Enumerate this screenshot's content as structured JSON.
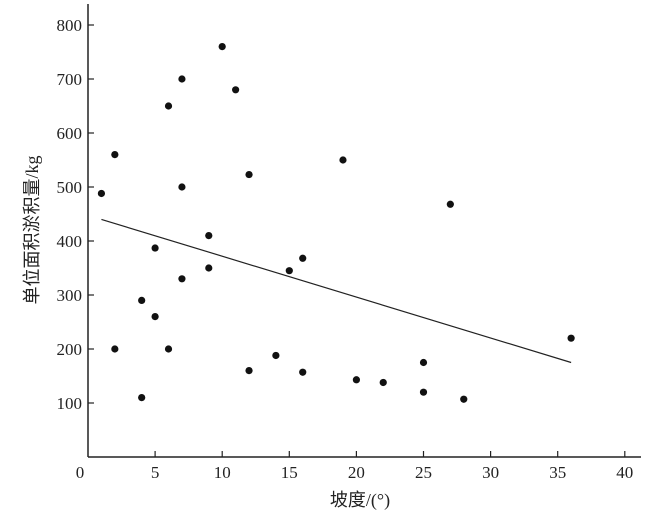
{
  "chart_data": {
    "type": "scatter",
    "title": "",
    "xlabel": "坡度/(°)",
    "ylabel": "单位面积淤积量/kg",
    "xlim": [
      0,
      41
    ],
    "ylim": [
      0,
      840
    ],
    "xticks": [
      0,
      5,
      10,
      15,
      20,
      25,
      30,
      35,
      40
    ],
    "yticks": [
      100,
      200,
      300,
      400,
      500,
      600,
      700,
      800
    ],
    "grid": false,
    "point_color": "#111111",
    "points": [
      [
        1,
        488
      ],
      [
        2,
        560
      ],
      [
        2,
        200
      ],
      [
        4,
        290
      ],
      [
        4,
        110
      ],
      [
        5,
        387
      ],
      [
        5,
        260
      ],
      [
        6,
        650
      ],
      [
        6,
        200
      ],
      [
        7,
        700
      ],
      [
        7,
        500
      ],
      [
        7,
        330
      ],
      [
        9,
        410
      ],
      [
        9,
        350
      ],
      [
        10,
        760
      ],
      [
        11,
        680
      ],
      [
        12,
        523
      ],
      [
        12,
        160
      ],
      [
        14,
        188
      ],
      [
        15,
        345
      ],
      [
        16,
        368
      ],
      [
        16,
        157
      ],
      [
        19,
        550
      ],
      [
        20,
        143
      ],
      [
        22,
        138
      ],
      [
        25,
        175
      ],
      [
        25,
        120
      ],
      [
        27,
        468
      ],
      [
        28,
        107
      ],
      [
        36,
        220
      ]
    ],
    "trend_line": [
      [
        1,
        440
      ],
      [
        36,
        175
      ]
    ]
  }
}
